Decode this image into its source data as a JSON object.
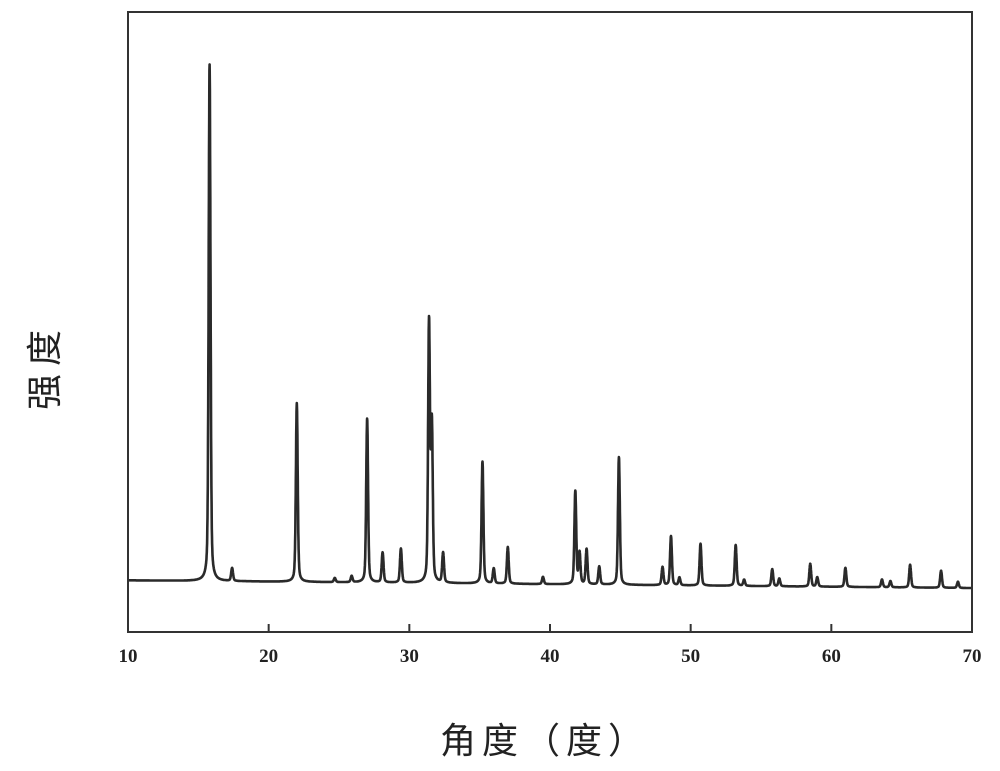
{
  "chart_data": {
    "type": "line",
    "title": "",
    "xlabel": "角度（度）",
    "ylabel": "强度",
    "xlim": [
      10,
      70
    ],
    "ylim": [
      -10,
      110
    ],
    "xticks": [
      10,
      20,
      30,
      40,
      50,
      60,
      70
    ],
    "yticks": [],
    "grid": false,
    "line_color": "#2a2a2a",
    "peaks": [
      {
        "x": 15.8,
        "y": 100
      },
      {
        "x": 17.4,
        "y": 2.5
      },
      {
        "x": 22.0,
        "y": 34.6
      },
      {
        "x": 24.7,
        "y": 0.8
      },
      {
        "x": 25.9,
        "y": 1.2
      },
      {
        "x": 27.0,
        "y": 31.7
      },
      {
        "x": 28.1,
        "y": 5.8
      },
      {
        "x": 29.4,
        "y": 6.6
      },
      {
        "x": 31.4,
        "y": 50
      },
      {
        "x": 31.6,
        "y": 30
      },
      {
        "x": 32.4,
        "y": 5.8
      },
      {
        "x": 35.2,
        "y": 23.6
      },
      {
        "x": 36.0,
        "y": 2.9
      },
      {
        "x": 37.0,
        "y": 7.1
      },
      {
        "x": 39.5,
        "y": 1.4
      },
      {
        "x": 41.8,
        "y": 18
      },
      {
        "x": 42.1,
        "y": 6
      },
      {
        "x": 42.6,
        "y": 6.8
      },
      {
        "x": 43.5,
        "y": 3.5
      },
      {
        "x": 44.9,
        "y": 24.7
      },
      {
        "x": 48.0,
        "y": 3.5
      },
      {
        "x": 48.6,
        "y": 9.5
      },
      {
        "x": 49.2,
        "y": 1.5
      },
      {
        "x": 50.7,
        "y": 8.1
      },
      {
        "x": 53.2,
        "y": 7.9
      },
      {
        "x": 53.8,
        "y": 1.2
      },
      {
        "x": 55.8,
        "y": 3.3
      },
      {
        "x": 56.3,
        "y": 1.5
      },
      {
        "x": 58.5,
        "y": 4.4
      },
      {
        "x": 59.0,
        "y": 1.8
      },
      {
        "x": 61.0,
        "y": 3.7
      },
      {
        "x": 63.6,
        "y": 1.5
      },
      {
        "x": 64.2,
        "y": 1.2
      },
      {
        "x": 65.6,
        "y": 4.4
      },
      {
        "x": 67.8,
        "y": 3.3
      },
      {
        "x": 69.0,
        "y": 1.2
      }
    ]
  }
}
